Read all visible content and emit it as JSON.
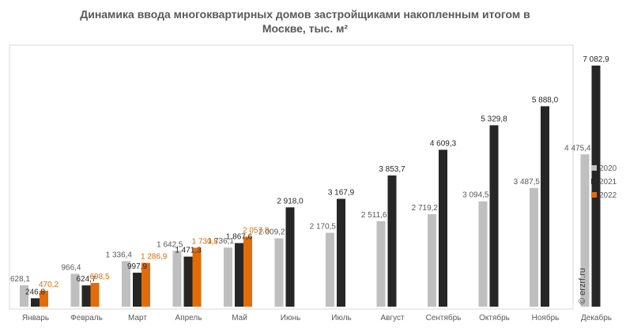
{
  "chart_data": {
    "type": "bar",
    "title_line1": "Динамика ввода многоквартирных домов застройщиками накопленным итогом в",
    "title_line2": "Москве, тыс. м²",
    "categories": [
      "Январь",
      "Февраль",
      "Март",
      "Апрель",
      "Май",
      "Июнь",
      "Июль",
      "Август",
      "Сентябрь",
      "Октябрь",
      "Ноябрь",
      "Декабрь"
    ],
    "series": [
      {
        "name": "2020",
        "color": "#bfbfbf",
        "label_color": "#595959",
        "values": [
          628.1,
          966.4,
          1336.4,
          1642.5,
          1736.1,
          2009.2,
          2170.5,
          2511.6,
          2719.2,
          3094.5,
          3487.5,
          4475.4
        ],
        "labels": [
          "628,1",
          "966,4",
          "1 336,4",
          "1 642,5",
          "1 736,1",
          "2 009,2",
          "2 170,5",
          "2 511,6",
          "2 719,2",
          "3 094,5",
          "3 487,5",
          "4 475,4"
        ]
      },
      {
        "name": "2021",
        "color": "#262626",
        "label_color": "#262626",
        "values": [
          246.8,
          624.7,
          997.9,
          1471.3,
          1867.6,
          2918.0,
          3167.9,
          3853.7,
          4609.3,
          5329.8,
          5888.0,
          7082.9
        ],
        "labels": [
          "246,8",
          "624,7",
          "997,9",
          "1 471,3",
          "1 867,6",
          "2 918,0",
          "3 167,9",
          "3 853,7",
          "4 609,3",
          "5 329,8",
          "5 888,0",
          "7 082,9"
        ]
      },
      {
        "name": "2022",
        "color": "#e36c0a",
        "label_color": "#e36c0a",
        "values": [
          470.2,
          698.5,
          1286.9,
          1730.8,
          2057.8,
          null,
          null,
          null,
          null,
          null,
          null,
          null
        ],
        "labels": [
          "470,2",
          "698,5",
          "1 286,9",
          "1 730,8",
          "2 057,8",
          "",
          "",
          "",
          "",
          "",
          "",
          ""
        ]
      }
    ],
    "ylim": [
      0,
      7500
    ],
    "legend_position": "right",
    "watermark": "© erzrf.ru"
  }
}
